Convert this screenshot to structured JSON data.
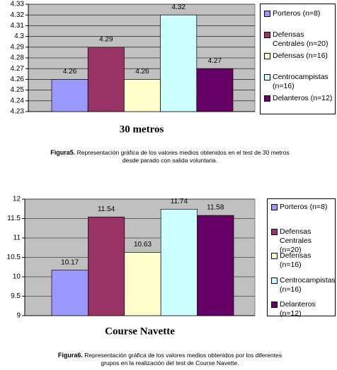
{
  "chart_data": [
    {
      "type": "bar",
      "title": "30 metros",
      "categories": [
        null
      ],
      "series": [
        {
          "name": "Porteros (n=8)",
          "color": "#9999ff",
          "values": [
            4.26
          ]
        },
        {
          "name": "Defensas Centrales (n=20)",
          "color": "#993366",
          "values": [
            4.29
          ]
        },
        {
          "name": "Defensas (n=16)",
          "color": "#ffffcc",
          "values": [
            4.26
          ]
        },
        {
          "name": "Centrocampistas (n=16)",
          "color": "#ccffff",
          "values": [
            4.32
          ]
        },
        {
          "name": "Delanteros (n=12)",
          "color": "#660066",
          "values": [
            4.27
          ]
        }
      ],
      "ylim": [
        4.23,
        4.33
      ],
      "yticks": [
        4.23,
        4.24,
        4.25,
        4.26,
        4.27,
        4.28,
        4.29,
        4.3,
        4.31,
        4.32,
        4.33
      ],
      "grid": true,
      "legend": "right"
    },
    {
      "type": "bar",
      "title": "Course Navette",
      "categories": [
        null
      ],
      "series": [
        {
          "name": "Porteros (n=8)",
          "color": "#9999ff",
          "values": [
            10.17
          ]
        },
        {
          "name": "Defensas Centrales (n=20)",
          "color": "#993366",
          "values": [
            11.54
          ]
        },
        {
          "name": "Defensas (n=16)",
          "color": "#ffffcc",
          "values": [
            10.63
          ]
        },
        {
          "name": "Centrocampistas (n=16)",
          "color": "#ccffff",
          "values": [
            11.74
          ]
        },
        {
          "name": "Delanteros (n=12)",
          "color": "#660066",
          "values": [
            11.58
          ]
        }
      ],
      "ylim": [
        9,
        12
      ],
      "yticks": [
        9,
        9.5,
        10,
        10.5,
        11,
        11.5,
        12
      ],
      "grid": true,
      "legend": "right"
    }
  ],
  "captions": [
    {
      "label": "Figura5.",
      "text": "Representación gráfica de los valores medios obtenidos en el test de 30 metros desde parado con salida voluntaria."
    },
    {
      "label": "Figura6.",
      "text": "Representación gráfica de los valores medios obtenidos por los diferentes grupos en la realización del test de Course Navette."
    }
  ]
}
